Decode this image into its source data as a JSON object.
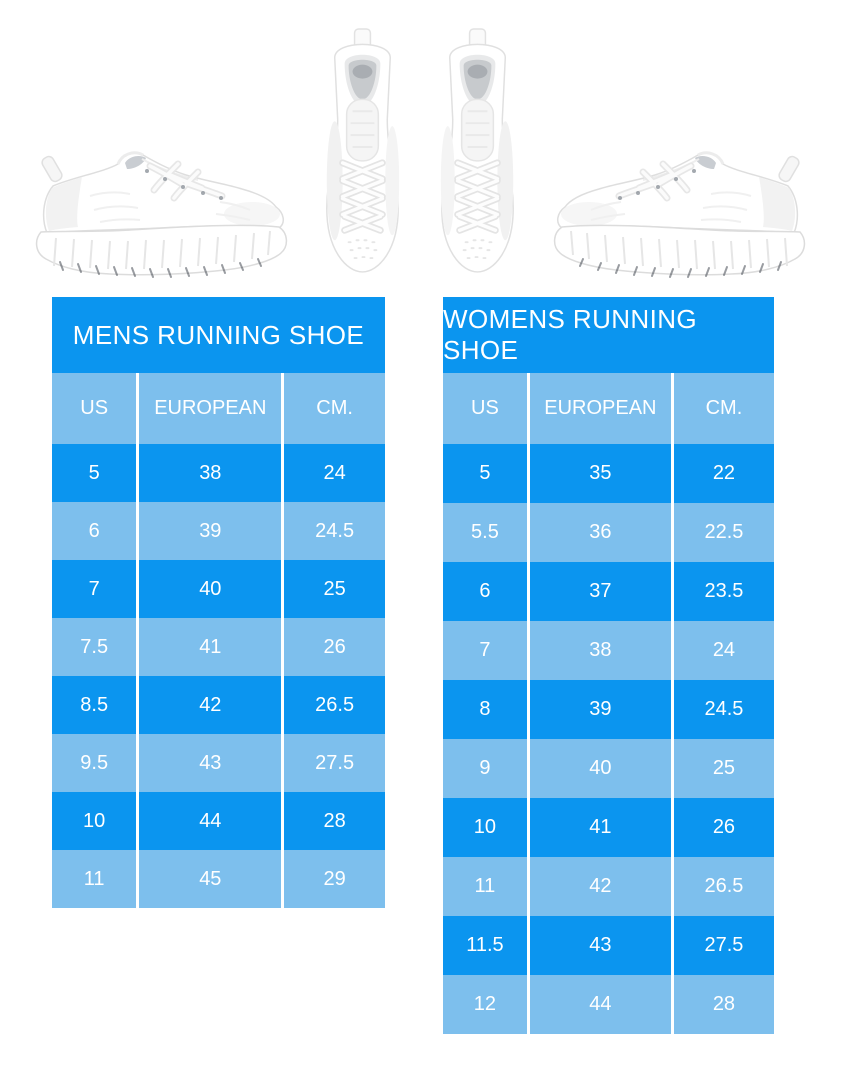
{
  "colors": {
    "dark_blue": "#0b95ef",
    "light_blue": "#7dbfed",
    "cell_text": "#ffffff",
    "page_background": "#ffffff"
  },
  "hero": {
    "left_image": "white-running-shoe-side-view-toe-right",
    "center_image": "white-running-shoes-pair-top-view",
    "right_image": "white-running-shoe-side-view-toe-left"
  },
  "chart_data": [
    {
      "type": "table",
      "title": "MENS RUNNING SHOE",
      "columns": [
        "US",
        "EUROPEAN",
        "CM."
      ],
      "rows": [
        [
          "5",
          "38",
          "24"
        ],
        [
          "6",
          "39",
          "24.5"
        ],
        [
          "7",
          "40",
          "25"
        ],
        [
          "7.5",
          "41",
          "26"
        ],
        [
          "8.5",
          "42",
          "26.5"
        ],
        [
          "9.5",
          "43",
          "27.5"
        ],
        [
          "10",
          "44",
          "28"
        ],
        [
          "11",
          "45",
          "29"
        ]
      ]
    },
    {
      "type": "table",
      "title": "WOMENS RUNNING SHOE",
      "columns": [
        "US",
        "EUROPEAN",
        "CM."
      ],
      "rows": [
        [
          "5",
          "35",
          "22"
        ],
        [
          "5.5",
          "36",
          "22.5"
        ],
        [
          "6",
          "37",
          "23.5"
        ],
        [
          "7",
          "38",
          "24"
        ],
        [
          "8",
          "39",
          "24.5"
        ],
        [
          "9",
          "40",
          "25"
        ],
        [
          "10",
          "41",
          "26"
        ],
        [
          "11",
          "42",
          "26.5"
        ],
        [
          "11.5",
          "43",
          "27.5"
        ],
        [
          "12",
          "44",
          "28"
        ]
      ]
    }
  ]
}
